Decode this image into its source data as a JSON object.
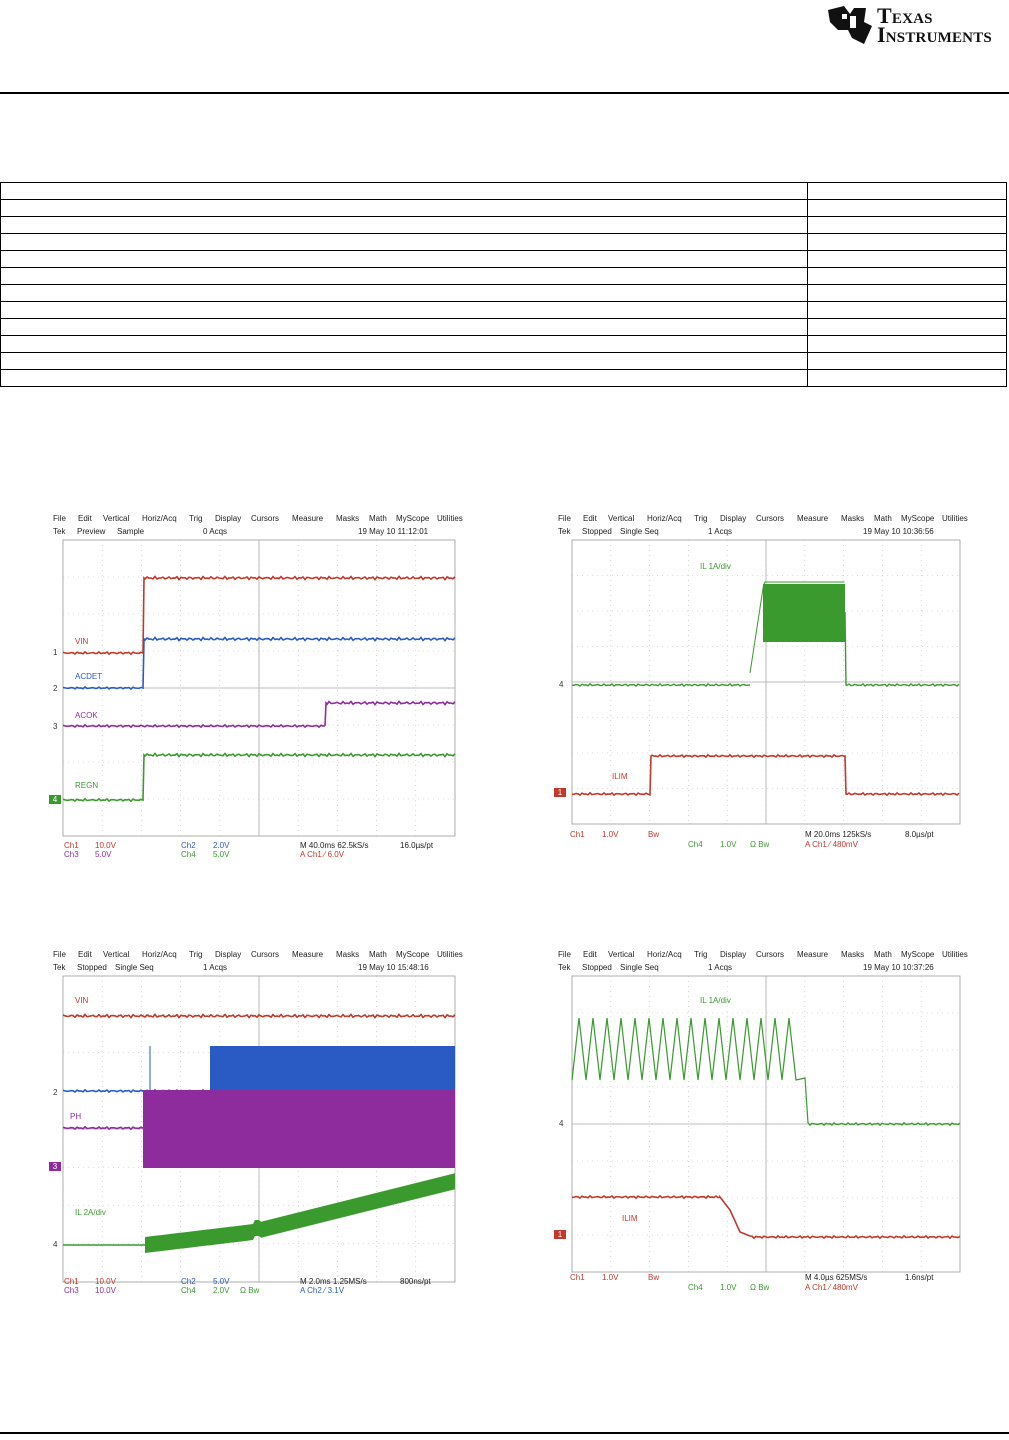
{
  "header": {
    "logo_line1": "Texas",
    "logo_line2": "Instruments"
  },
  "menu": [
    "File",
    "Edit",
    "Vertical",
    "Horiz/Acq",
    "Trig",
    "Display",
    "Cursors",
    "Measure",
    "Masks",
    "Math",
    "MyScope",
    "Utilities"
  ],
  "colors": {
    "ch1": "#c0392b",
    "ch2": "#2a5bc4",
    "ch3": "#8e2c9e",
    "ch4": "#3a9a2e",
    "grid": "#bbbbbb"
  },
  "scopes": [
    {
      "status": {
        "brand": "Tek",
        "mode": "Preview",
        "acq": "Sample",
        "count": "0 Acqs",
        "datetime": "19 May 10 11:12:01"
      },
      "labels": {
        "vin": "VIN",
        "acdet": "ACDET",
        "acok": "ACOK",
        "regn": "REGN"
      },
      "markers": {
        "m1": "1",
        "m2": "2",
        "m3": "3",
        "m4": "4"
      },
      "footer": {
        "ch1": "Ch1",
        "ch1_scale": "10.0V",
        "ch3": "Ch3",
        "ch3_scale": "5.0V",
        "ch2": "Ch2",
        "ch2_scale": "2.0V",
        "ch4": "Ch4",
        "ch4_scale": "5.0V",
        "timebase": "M 40.0ms 62.5kS/s",
        "recpt": "16.0µs/pt",
        "trigger": "A  Ch1  ⁄  6.0V"
      }
    },
    {
      "status": {
        "brand": "Tek",
        "mode": "Stopped",
        "acq": "Single Seq",
        "count": "1 Acqs",
        "datetime": "19 May 10 10:36:56"
      },
      "labels": {
        "il": "IL 1A/div",
        "ilim": "ILIM"
      },
      "markers": {
        "m4": "4",
        "m1": "1"
      },
      "footer": {
        "ch1": "Ch1",
        "ch1_scale": "1.0V",
        "ch1_bw": "Bw",
        "ch4": "Ch4",
        "ch4_scale": "1.0V",
        "ch4_bw": "Ω  Bw",
        "timebase": "M 20.0ms 125kS/s",
        "recpt": "8.0µs/pt",
        "trigger": "A  Ch1  ⁄  480mV"
      }
    },
    {
      "status": {
        "brand": "Tek",
        "mode": "Stopped",
        "acq": "Single Seq",
        "count": "1 Acqs",
        "datetime": "19 May 10 15:48:16"
      },
      "labels": {
        "vin": "VIN",
        "ph": "PH",
        "il": "IL 2A/div"
      },
      "markers": {
        "m2": "2",
        "m3": "3",
        "m4": "4"
      },
      "footer": {
        "ch1": "Ch1",
        "ch1_scale": "10.0V",
        "ch3": "Ch3",
        "ch3_scale": "10.0V",
        "ch2": "Ch2",
        "ch2_scale": "5.0V",
        "ch4": "Ch4",
        "ch4_scale": "2.0V",
        "ch4_bw": "Ω  Bw",
        "timebase": "M 2.0ms 1.25MS/s",
        "recpt": "800ns/pt",
        "trigger": "A  Ch2  ⁄  3.1V"
      }
    },
    {
      "status": {
        "brand": "Tek",
        "mode": "Stopped",
        "acq": "Single Seq",
        "count": "1 Acqs",
        "datetime": "19 May 10 10:37:26"
      },
      "labels": {
        "il": "IL 1A/div",
        "ilim": "ILIM"
      },
      "markers": {
        "m4": "4",
        "m1": "1"
      },
      "footer": {
        "ch1": "Ch1",
        "ch1_scale": "1.0V",
        "ch1_bw": "Bw",
        "ch4": "Ch4",
        "ch4_scale": "1.0V",
        "ch4_bw": "Ω  Bw",
        "timebase": "M 4.0µs 625MS/s",
        "recpt": "1.6ns/pt",
        "trigger": "A  Ch1  ⁄  480mV"
      }
    }
  ]
}
